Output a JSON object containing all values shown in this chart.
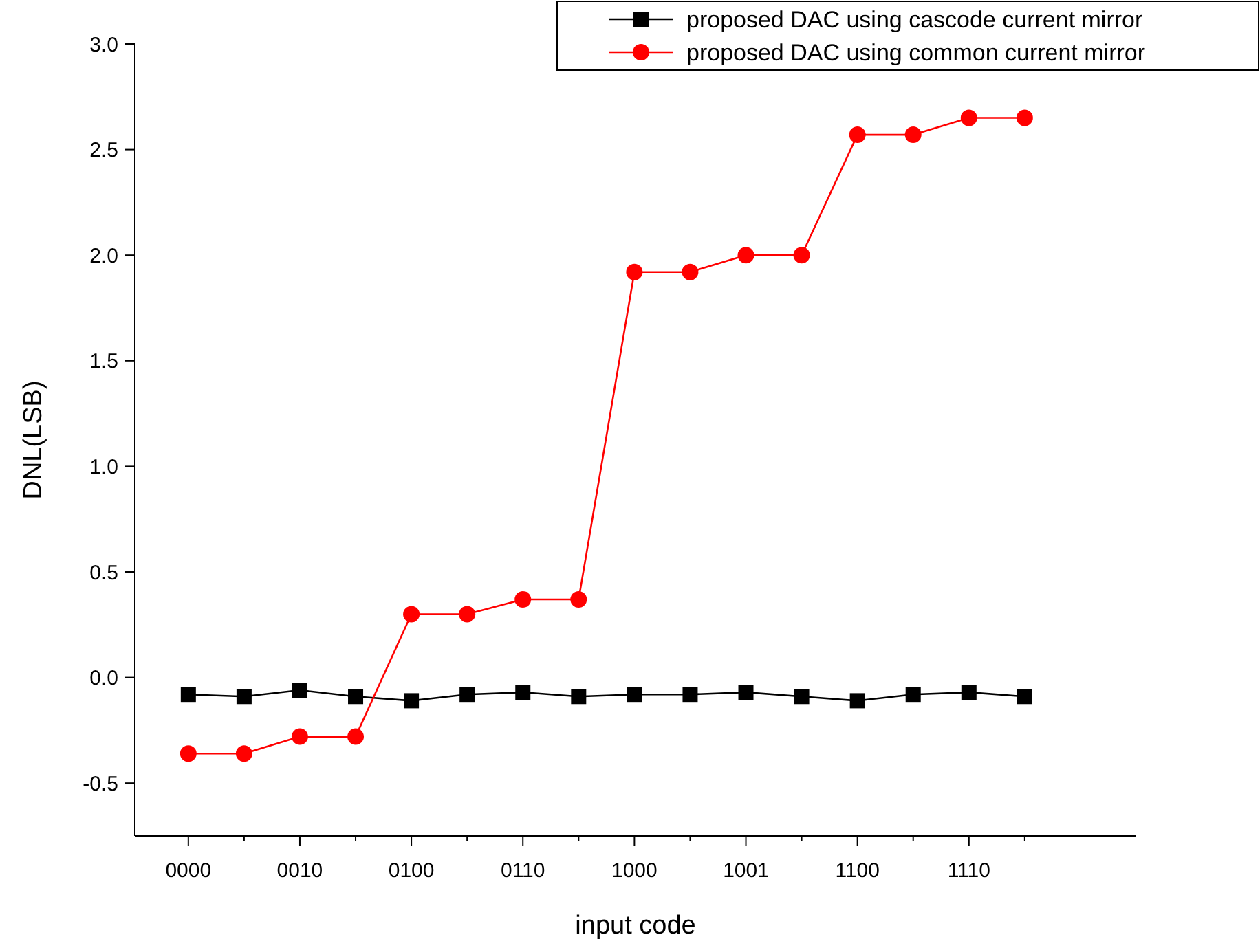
{
  "chart_data": {
    "type": "line",
    "xlabel": "input code",
    "ylabel": "DNL(LSB)",
    "categories": [
      "0000",
      null,
      "0010",
      null,
      "0100",
      null,
      "0110",
      null,
      "1000",
      null,
      "1001",
      null,
      "1100",
      null,
      "1110",
      null
    ],
    "series": [
      {
        "name": "proposed DAC using cascode current mirror",
        "color": "#000000",
        "marker": "square",
        "values": [
          -0.08,
          -0.09,
          -0.06,
          -0.09,
          -0.11,
          -0.08,
          -0.07,
          -0.09,
          -0.08,
          -0.08,
          -0.07,
          -0.09,
          -0.11,
          -0.08,
          -0.07,
          -0.09
        ]
      },
      {
        "name": "proposed DAC using common current mirror",
        "color": "#ff0000",
        "marker": "circle",
        "values": [
          -0.36,
          -0.36,
          -0.28,
          -0.28,
          0.3,
          0.3,
          0.37,
          0.37,
          1.92,
          1.92,
          2.0,
          2.0,
          2.57,
          2.57,
          2.65,
          2.65
        ]
      }
    ],
    "ylim": [
      -0.75,
      3.0
    ],
    "yticks": [
      {
        "value": -0.5,
        "label": "-0.5"
      },
      {
        "value": 0,
        "label": "0.0"
      },
      {
        "value": 0.5,
        "label": "0.5"
      },
      {
        "value": 1,
        "label": "1.0"
      },
      {
        "value": 1.5,
        "label": "1.5"
      },
      {
        "value": 2,
        "label": "2.0"
      },
      {
        "value": 2.5,
        "label": "2.5"
      },
      {
        "value": 3,
        "label": "3.0"
      }
    ],
    "grid": false,
    "legend": "top right"
  }
}
